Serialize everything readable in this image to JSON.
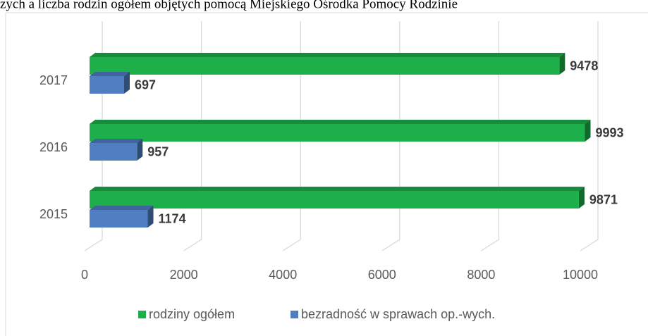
{
  "chart_data": {
    "type": "bar3d_horizontal",
    "title": "zych a liczba rodzin ogółem objętych pomocą Miejskiego Ośrodka Pomocy Rodzinie",
    "categories": [
      "2015",
      "2016",
      "2017"
    ],
    "series": [
      {
        "name": "rodziny ogółem",
        "color": "#1db04a",
        "values": [
          9871,
          9993,
          9478
        ]
      },
      {
        "name": "bezradność w sprawach op.-wych.",
        "color": "#4f7fc2",
        "values": [
          1174,
          957,
          697
        ]
      }
    ],
    "xlim": [
      0,
      10000
    ],
    "xticks": [
      0,
      2000,
      4000,
      6000,
      8000,
      10000
    ],
    "grid": true,
    "legend": "bottom"
  }
}
